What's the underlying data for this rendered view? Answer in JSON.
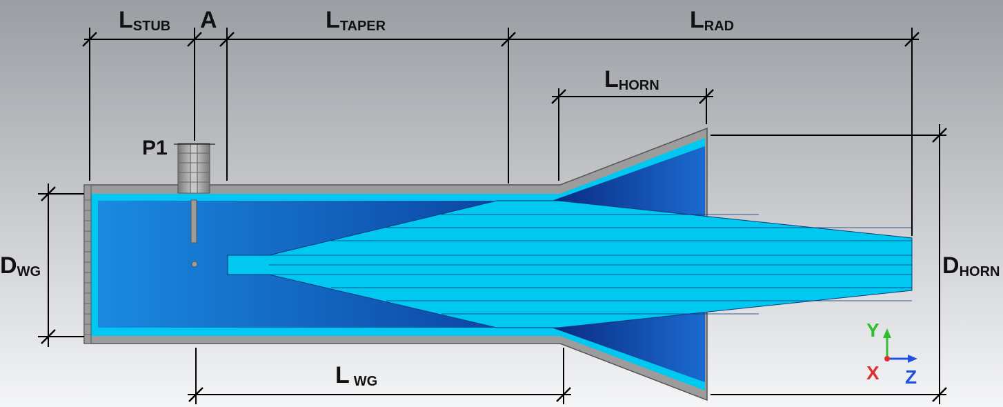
{
  "labels": {
    "l_stub": {
      "main": "L",
      "sub": "STUB"
    },
    "a": "A",
    "l_taper": {
      "main": "L",
      "sub": "TAPER"
    },
    "l_rad": {
      "main": "L",
      "sub": "RAD"
    },
    "l_horn": {
      "main": "L",
      "sub": "HORN"
    },
    "p1": "P1",
    "d_wg": {
      "main": "D",
      "sub": "WG"
    },
    "d_horn": {
      "main": "D",
      "sub": "HORN"
    },
    "l_wg": {
      "main": "L",
      "sub": "WG"
    }
  },
  "axes": {
    "y": "Y",
    "x": "X",
    "z": "Z"
  },
  "colors": {
    "background_top": "#9a9da2",
    "background_bottom": "#f4f5f7",
    "metal": "#9c9c9c",
    "metal_edge": "#555555",
    "dielectric": "#00c8f0",
    "interior_dark": "#0a3a9a",
    "interior_light": "#1a8ae0",
    "axis_y": "#2fbf2f",
    "axis_x": "#e03030",
    "axis_z": "#2050e0"
  }
}
